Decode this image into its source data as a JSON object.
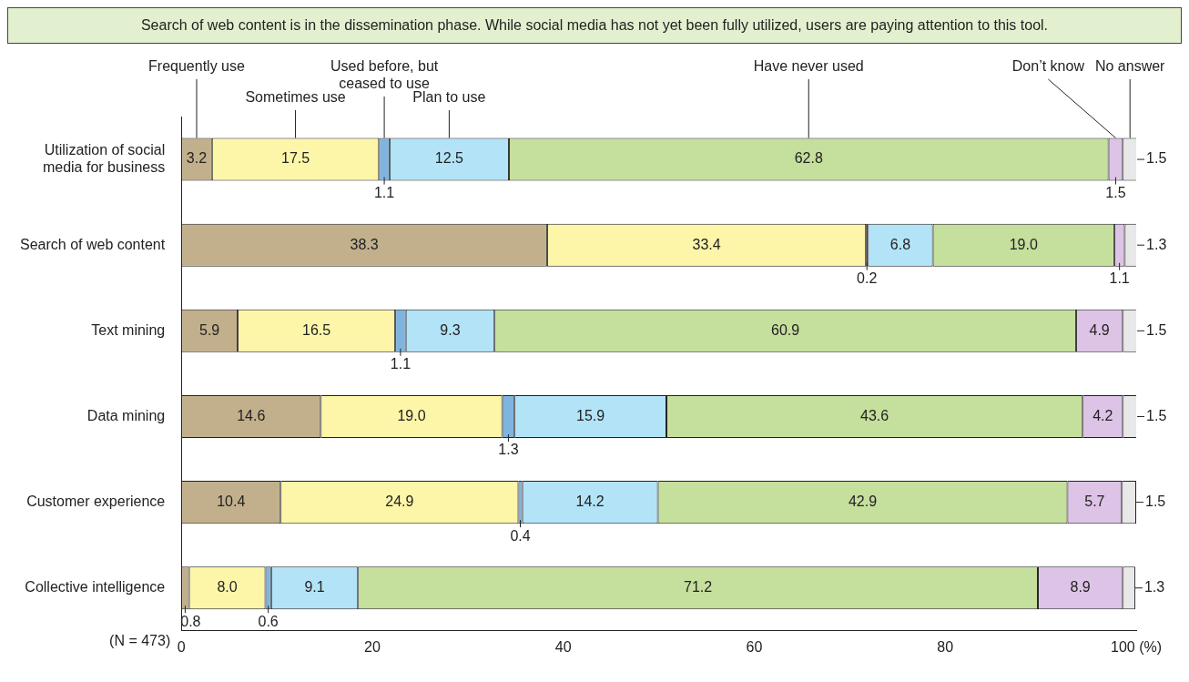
{
  "chart_data": {
    "type": "bar",
    "orientation": "horizontal",
    "stacked": true,
    "title": "Search of web content is in the dissemination phase. While social media has not yet been fully utilized, users are paying attention to this tool.",
    "categories": [
      "Utilization of social media for business",
      "Search of web content",
      "Text mining",
      "Data mining",
      "Customer experience",
      "Collective intelligence"
    ],
    "series": [
      {
        "name": "Frequently use",
        "color": "#c2b08c",
        "values": [
          3.2,
          38.3,
          5.9,
          14.6,
          10.4,
          0.8
        ],
        "value_labels": [
          "3.2",
          "38.3",
          "5.9",
          "14.6",
          "10.4",
          "0.8"
        ]
      },
      {
        "name": "Sometimes use",
        "color": "#fdf6a8",
        "values": [
          17.5,
          33.4,
          16.5,
          19.0,
          24.9,
          8.0
        ],
        "value_labels": [
          "17.5",
          "33.4",
          "16.5",
          "19.0",
          "24.9",
          "8.0"
        ]
      },
      {
        "name": "Used before, but ceased to use",
        "color": "#7fb4e0",
        "values": [
          1.1,
          0.2,
          1.1,
          1.3,
          0.4,
          0.6
        ],
        "value_labels": [
          "1.1",
          "0.2",
          "1.1",
          "1.3",
          "0.4",
          "0.6"
        ]
      },
      {
        "name": "Plan to use",
        "color": "#b3e3f7",
        "values": [
          12.5,
          6.8,
          9.3,
          15.9,
          14.2,
          9.1
        ],
        "value_labels": [
          "12.5",
          "6.8",
          "9.3",
          "15.9",
          "14.2",
          "9.1"
        ]
      },
      {
        "name": "Have never used",
        "color": "#c5df9c",
        "values": [
          62.8,
          19.0,
          60.9,
          43.6,
          42.9,
          71.2
        ],
        "value_labels": [
          "62.8",
          "19.0",
          "60.9",
          "43.6",
          "42.9",
          "71.2"
        ]
      },
      {
        "name": "Don’t know",
        "color": "#ddc3e6",
        "values": [
          1.5,
          1.1,
          4.9,
          4.2,
          5.7,
          8.9
        ],
        "value_labels": [
          "1.5",
          "1.1",
          "4.9",
          "4.2",
          "5.7",
          "8.9"
        ]
      },
      {
        "name": "No answer",
        "color": "#e8e8e8",
        "values": [
          1.5,
          1.3,
          1.5,
          1.5,
          1.5,
          1.3
        ],
        "value_labels": [
          "1.5",
          "1.3",
          "1.5",
          "1.5",
          "1.5",
          "1.3"
        ]
      }
    ],
    "xlim": [
      0,
      100
    ],
    "xticks": [
      0,
      20,
      40,
      60,
      80,
      {
        "value": 100,
        "label": "100 (%)"
      }
    ],
    "grid": false,
    "legend": false,
    "annotations": [
      "(N = 473)"
    ]
  }
}
